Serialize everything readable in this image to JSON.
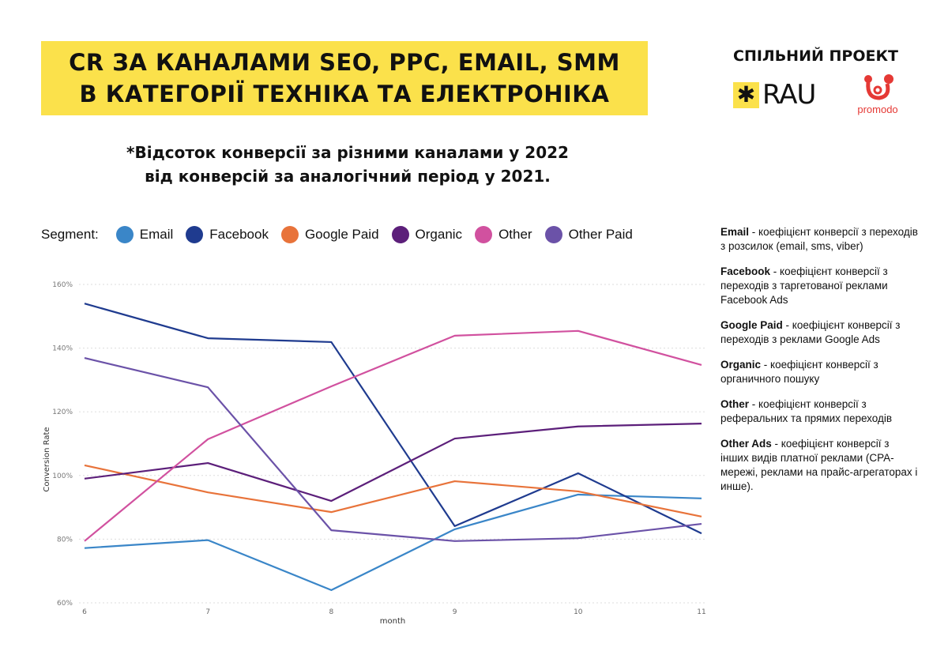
{
  "header": {
    "title_line1": "CR ЗА КАНАЛАМИ SEO, PPC, EMAIL, SMM",
    "title_line2": "В КАТЕГОРІЇ ТЕХНІКА ТА ЕЛЕКТРОНІКА",
    "joint_project": "СПІЛЬНИЙ ПРОЕКТ",
    "logo_rau": "RAU",
    "logo_promodo": "promodo"
  },
  "subtitle_line1": "*Відсоток конверсії за різними каналами у 2022",
  "subtitle_line2": "від конверсій за аналогічний період у 2021.",
  "legend_label": "Segment:",
  "notes": [
    {
      "term": "Email",
      "text": " - коефіцієнт конверсії з переходів з розсилок (email, sms, viber)"
    },
    {
      "term": "Facebook",
      "text": " - коефіцієнт конверсії з переходів з таргетованої реклами Facebook Ads"
    },
    {
      "term": "Google Paid",
      "text": " - коефіцієнт конверсії з переходів з реклами Google Ads"
    },
    {
      "term": "Organic",
      "text": "  - коефіцієнт конверсії з органичного пошуку"
    },
    {
      "term": "Other",
      "text": "  -  коефіцієнт конверсії з реферальних та прямих переходів"
    },
    {
      "term": "Other Ads",
      "text": "  - коефіцієнт конверсії з інших видів платної реклами (CPA-мережі, реклами на прайс-агрегаторах і инше)."
    }
  ],
  "chart_data": {
    "type": "line",
    "title": "",
    "xlabel": "month",
    "ylabel": "Conversion Rate",
    "x": [
      6,
      7,
      8,
      9,
      10,
      11
    ],
    "ylim": [
      60,
      160
    ],
    "yticks": [
      "60%",
      "80%",
      "100%",
      "120%",
      "140%",
      "160%"
    ],
    "ytick_values": [
      60,
      80,
      100,
      120,
      140,
      160
    ],
    "grid": true,
    "legend_position": "top",
    "series": [
      {
        "name": "Email",
        "color": "#3a86c8",
        "values": [
          77.2,
          79.7,
          64.0,
          83.1,
          94.0,
          92.8
        ]
      },
      {
        "name": "Facebook",
        "color": "#1f3b8f",
        "values": [
          154.0,
          143.1,
          141.9,
          84.1,
          100.7,
          81.8
        ]
      },
      {
        "name": "Google Paid",
        "color": "#e8733a",
        "values": [
          103.2,
          94.7,
          88.5,
          98.2,
          95.0,
          87.1
        ]
      },
      {
        "name": "Organic",
        "color": "#5c1f7a",
        "values": [
          99.0,
          103.9,
          92.0,
          111.6,
          115.4,
          116.3
        ]
      },
      {
        "name": "Other",
        "color": "#d1519f",
        "values": [
          79.4,
          111.4,
          128.0,
          143.9,
          145.4,
          134.7
        ]
      },
      {
        "name": "Other Paid",
        "color": "#6b52a8",
        "values": [
          136.9,
          127.7,
          82.8,
          79.4,
          80.3,
          84.8
        ]
      }
    ]
  }
}
